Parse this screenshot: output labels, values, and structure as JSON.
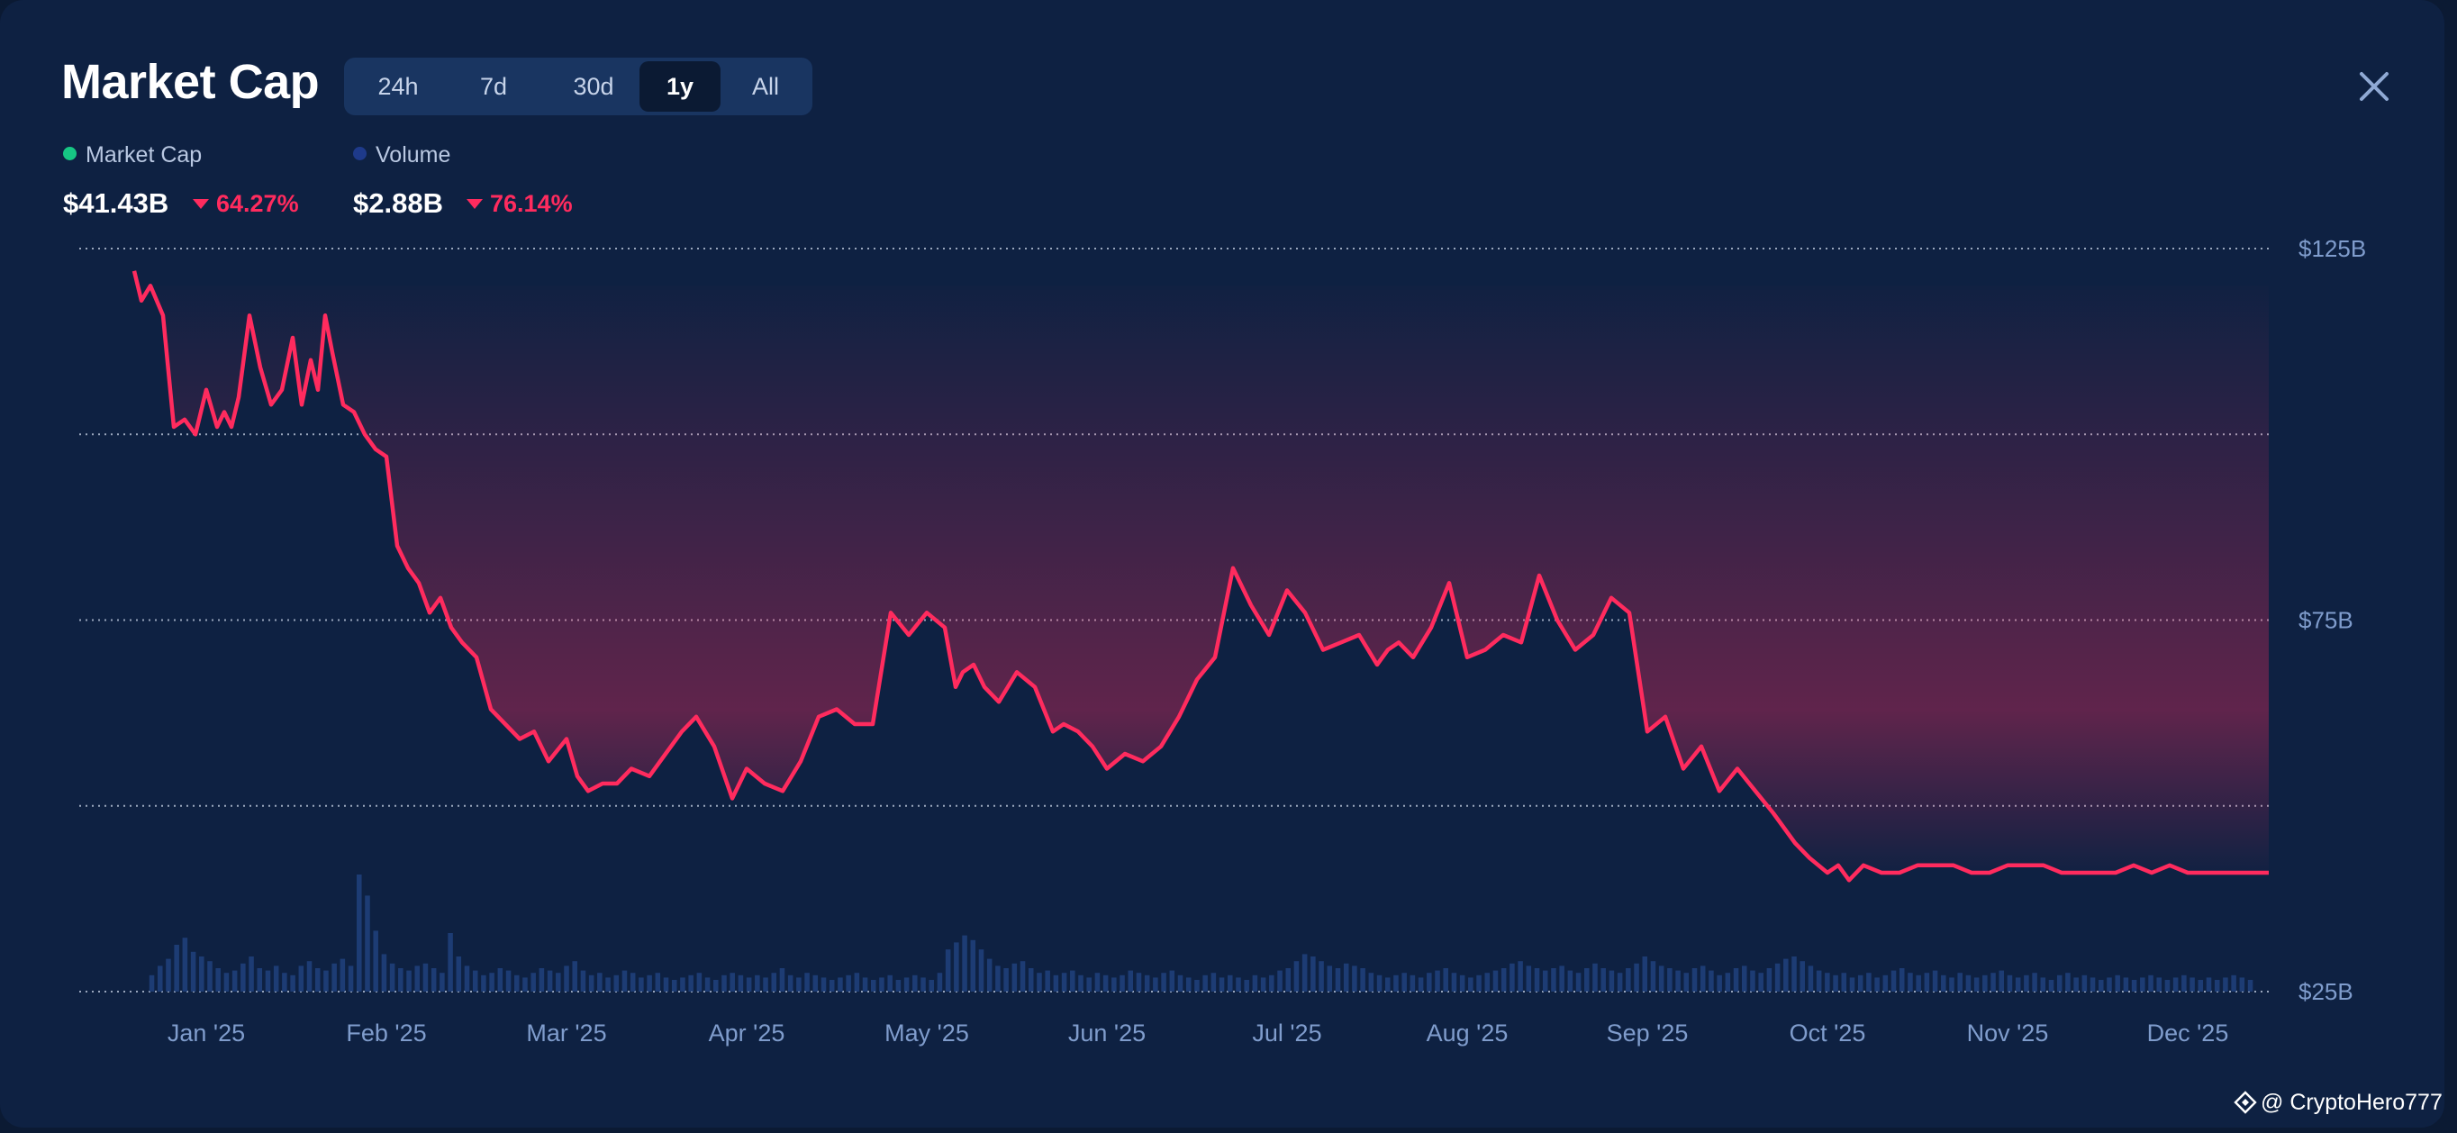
{
  "header": {
    "title": "Market Cap",
    "close_icon": "close-icon"
  },
  "tabs": [
    {
      "label": "24h",
      "active": false
    },
    {
      "label": "7d",
      "active": false
    },
    {
      "label": "30d",
      "active": false
    },
    {
      "label": "1y",
      "active": true
    },
    {
      "label": "All",
      "active": false
    }
  ],
  "legend": {
    "market_cap": {
      "label": "Market Cap",
      "value": "$41.43B",
      "change": "64.27%",
      "direction": "down",
      "color": "#16c784"
    },
    "volume": {
      "label": "Volume",
      "value": "$2.88B",
      "change": "76.14%",
      "direction": "down",
      "color": "#1e3a8a"
    }
  },
  "colors": {
    "line": "#ff2b5e",
    "change_negative": "#ff2b5e",
    "volume_bars": "#1f3f7a",
    "grid": "#c9d4e6",
    "axis_text": "#7f9ccc"
  },
  "watermark": {
    "handle": "@ CryptoHero777",
    "icon": "binance-diamond-icon"
  },
  "chart_data": {
    "type": "line",
    "title": "Market Cap",
    "xlabel": "",
    "ylabel": "",
    "x_ticks": [
      "Jan '25",
      "Feb '25",
      "Mar '25",
      "Apr '25",
      "May '25",
      "Jun '25",
      "Jul '25",
      "Aug '25",
      "Sep '25",
      "Oct '25",
      "Nov '25",
      "Dec '25"
    ],
    "y_ticks": [
      {
        "value": 125,
        "label": "$125B"
      },
      {
        "value": 75,
        "label": "$75B"
      },
      {
        "value": 25,
        "label": "$25B"
      }
    ],
    "ylim": [
      25,
      125
    ],
    "xlim": [
      -0.35,
      11.45
    ],
    "grid": true,
    "series": [
      {
        "name": "Market Cap",
        "unit": "$B",
        "x": [
          -0.4,
          -0.36,
          -0.31,
          -0.24,
          -0.18,
          -0.12,
          -0.06,
          0.0,
          0.06,
          0.1,
          0.14,
          0.18,
          0.24,
          0.3,
          0.36,
          0.42,
          0.48,
          0.53,
          0.58,
          0.62,
          0.66,
          0.7,
          0.76,
          0.82,
          0.88,
          0.94,
          1.0,
          1.06,
          1.12,
          1.18,
          1.24,
          1.3,
          1.36,
          1.42,
          1.5,
          1.58,
          1.66,
          1.74,
          1.82,
          1.9,
          2.0,
          2.06,
          2.12,
          2.2,
          2.28,
          2.36,
          2.46,
          2.55,
          2.64,
          2.72,
          2.82,
          2.92,
          3.0,
          3.1,
          3.2,
          3.3,
          3.4,
          3.5,
          3.6,
          3.7,
          3.8,
          3.9,
          4.0,
          4.1,
          4.16,
          4.2,
          4.26,
          4.32,
          4.4,
          4.5,
          4.6,
          4.7,
          4.76,
          4.84,
          4.92,
          5.0,
          5.1,
          5.2,
          5.3,
          5.4,
          5.5,
          5.6,
          5.7,
          5.8,
          5.9,
          6.0,
          6.1,
          6.2,
          6.3,
          6.4,
          6.5,
          6.56,
          6.62,
          6.7,
          6.8,
          6.9,
          7.0,
          7.1,
          7.2,
          7.3,
          7.4,
          7.5,
          7.6,
          7.7,
          7.8,
          7.9,
          8.0,
          8.1,
          8.2,
          8.3,
          8.4,
          8.5,
          8.6,
          8.7,
          8.76,
          8.82,
          8.9,
          9.0,
          9.06,
          9.12,
          9.2,
          9.3,
          9.4,
          9.5,
          9.6,
          9.7,
          9.8,
          9.9,
          10.0,
          10.1,
          10.2,
          10.3,
          10.4,
          10.5,
          10.6,
          10.7,
          10.8,
          10.9,
          11.0,
          11.1,
          11.2,
          11.3,
          11.4,
          11.45
        ],
        "values": [
          122,
          118,
          120,
          116,
          101,
          102,
          100,
          106,
          101,
          103,
          101,
          105,
          116,
          109,
          104,
          106,
          113,
          104,
          110,
          106,
          116,
          111,
          104,
          103,
          100,
          98,
          97,
          85,
          82,
          80,
          76,
          78,
          74,
          72,
          70,
          63,
          61,
          59,
          60,
          56,
          59,
          54,
          52,
          53,
          53,
          55,
          54,
          57,
          60,
          62,
          58,
          51,
          55,
          53,
          52,
          56,
          62,
          63,
          61,
          61,
          76,
          73,
          76,
          74,
          66,
          68,
          69,
          66,
          64,
          68,
          66,
          60,
          61,
          60,
          58,
          55,
          57,
          56,
          58,
          62,
          67,
          70,
          82,
          77,
          73,
          79,
          76,
          71,
          72,
          73,
          69,
          71,
          72,
          70,
          74,
          80,
          70,
          71,
          73,
          72,
          81,
          75,
          71,
          73,
          78,
          76,
          60,
          62,
          55,
          58,
          52,
          55,
          52,
          49,
          47,
          45,
          43,
          41,
          42,
          40,
          42,
          41,
          41,
          42,
          42,
          42,
          41,
          41,
          42,
          42,
          42,
          41,
          41,
          41,
          41,
          42,
          41,
          42,
          41,
          41,
          41,
          41,
          41,
          41
        ]
      },
      {
        "name": "Volume",
        "unit": "relative",
        "x_start": -0.3,
        "x_end": 11.35,
        "values": [
          0.14,
          0.22,
          0.28,
          0.4,
          0.46,
          0.34,
          0.3,
          0.26,
          0.2,
          0.16,
          0.18,
          0.24,
          0.3,
          0.2,
          0.18,
          0.22,
          0.16,
          0.14,
          0.22,
          0.26,
          0.2,
          0.18,
          0.24,
          0.28,
          0.22,
          1.0,
          0.82,
          0.52,
          0.32,
          0.24,
          0.2,
          0.18,
          0.22,
          0.24,
          0.2,
          0.16,
          0.5,
          0.3,
          0.22,
          0.18,
          0.14,
          0.16,
          0.2,
          0.18,
          0.14,
          0.12,
          0.16,
          0.2,
          0.18,
          0.16,
          0.22,
          0.26,
          0.18,
          0.14,
          0.16,
          0.12,
          0.14,
          0.18,
          0.16,
          0.12,
          0.14,
          0.16,
          0.12,
          0.1,
          0.12,
          0.14,
          0.16,
          0.12,
          0.1,
          0.14,
          0.16,
          0.14,
          0.12,
          0.14,
          0.12,
          0.16,
          0.2,
          0.14,
          0.12,
          0.16,
          0.14,
          0.12,
          0.1,
          0.12,
          0.14,
          0.16,
          0.12,
          0.1,
          0.12,
          0.14,
          0.1,
          0.12,
          0.14,
          0.12,
          0.1,
          0.16,
          0.36,
          0.42,
          0.48,
          0.44,
          0.36,
          0.28,
          0.22,
          0.2,
          0.24,
          0.26,
          0.2,
          0.16,
          0.18,
          0.14,
          0.16,
          0.18,
          0.14,
          0.12,
          0.16,
          0.14,
          0.12,
          0.14,
          0.18,
          0.16,
          0.14,
          0.12,
          0.16,
          0.18,
          0.14,
          0.12,
          0.1,
          0.14,
          0.16,
          0.12,
          0.14,
          0.12,
          0.1,
          0.14,
          0.12,
          0.14,
          0.18,
          0.2,
          0.26,
          0.32,
          0.3,
          0.26,
          0.22,
          0.2,
          0.24,
          0.22,
          0.2,
          0.16,
          0.14,
          0.12,
          0.14,
          0.16,
          0.14,
          0.12,
          0.16,
          0.18,
          0.2,
          0.16,
          0.14,
          0.12,
          0.14,
          0.16,
          0.18,
          0.2,
          0.24,
          0.26,
          0.22,
          0.2,
          0.18,
          0.2,
          0.22,
          0.18,
          0.16,
          0.2,
          0.24,
          0.2,
          0.18,
          0.16,
          0.2,
          0.24,
          0.3,
          0.26,
          0.22,
          0.2,
          0.18,
          0.16,
          0.2,
          0.22,
          0.18,
          0.14,
          0.16,
          0.2,
          0.22,
          0.18,
          0.16,
          0.2,
          0.24,
          0.28,
          0.3,
          0.26,
          0.22,
          0.18,
          0.16,
          0.14,
          0.16,
          0.12,
          0.14,
          0.16,
          0.12,
          0.14,
          0.18,
          0.2,
          0.16,
          0.14,
          0.16,
          0.18,
          0.14,
          0.12,
          0.16,
          0.14,
          0.12,
          0.14,
          0.16,
          0.18,
          0.14,
          0.12,
          0.14,
          0.16,
          0.12,
          0.1,
          0.14,
          0.16,
          0.12,
          0.14,
          0.12,
          0.1,
          0.12,
          0.14,
          0.12,
          0.1,
          0.12,
          0.14,
          0.12,
          0.1,
          0.12,
          0.14,
          0.12,
          0.1,
          0.12,
          0.1,
          0.12,
          0.14,
          0.12,
          0.1
        ]
      }
    ]
  }
}
